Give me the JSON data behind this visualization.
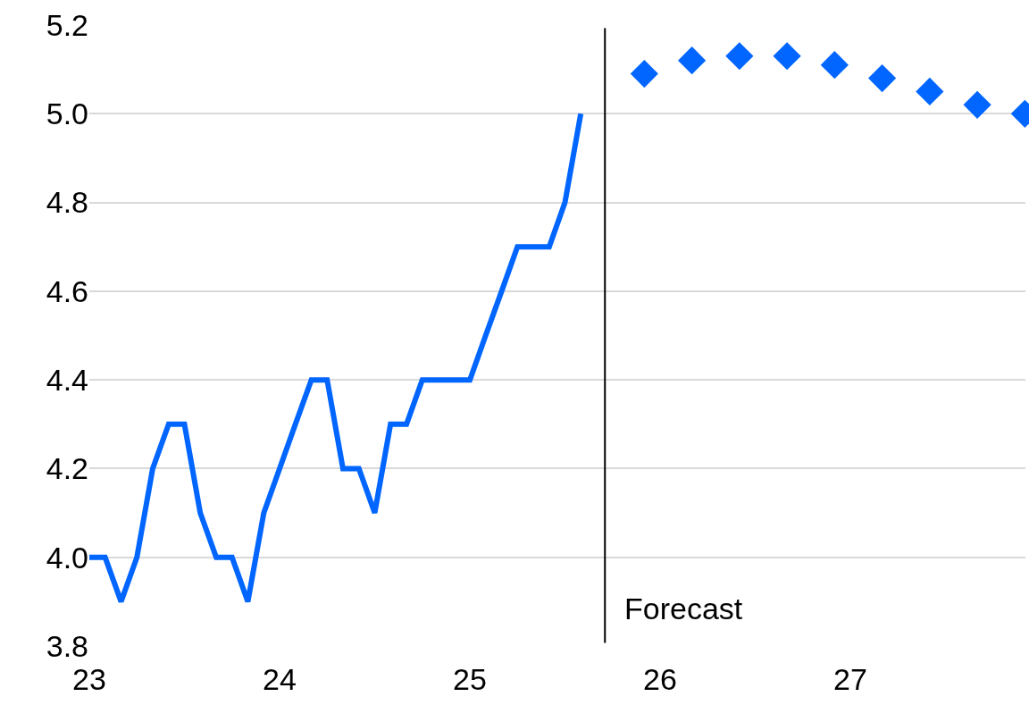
{
  "chart_data": {
    "type": "line",
    "series": [
      {
        "color": "#0066ff",
        "marker": "none",
        "x": [
          23,
          23.083,
          23.167,
          23.25,
          23.333,
          23.417,
          23.5,
          23.583,
          23.667,
          23.75,
          23.833,
          23.917,
          24,
          24.083,
          24.167,
          24.25,
          24.333,
          24.417,
          24.5,
          24.583,
          24.667,
          24.75,
          24.833,
          24.917,
          25,
          25.083,
          25.167,
          25.25,
          25.333,
          25.417,
          25.5,
          25.583
        ],
        "values": [
          4.0,
          4.0,
          3.9,
          4.0,
          4.2,
          4.3,
          4.3,
          4.1,
          4.0,
          4.0,
          3.9,
          4.1,
          4.2,
          4.3,
          4.4,
          4.4,
          4.2,
          4.2,
          4.1,
          4.3,
          4.3,
          4.4,
          4.4,
          4.4,
          4.4,
          4.5,
          4.6,
          4.7,
          4.7,
          4.7,
          4.8,
          5.0
        ]
      },
      {
        "color": "#0066ff",
        "type": "scatter",
        "marker": "diamond",
        "x": [
          25.917,
          26.167,
          26.417,
          26.667,
          26.917,
          27.167,
          27.417,
          27.667,
          27.917
        ],
        "values": [
          5.09,
          5.12,
          5.13,
          5.13,
          5.11,
          5.08,
          5.05,
          5.02,
          5.0
        ]
      }
    ],
    "xlim": [
      23,
      27.92
    ],
    "xticks": [
      23,
      24,
      25,
      26,
      27
    ],
    "ylim": [
      3.8,
      5.2
    ],
    "yticks": [
      3.8,
      {
        "value": 4,
        "label": "4.0"
      },
      4.2,
      4.4,
      4.6,
      4.8,
      {
        "value": 5,
        "label": "5.0"
      },
      5.2
    ],
    "grid": "y",
    "ref_lines": [
      {
        "axis": "x",
        "value": 25.71,
        "label": "Forecast",
        "color": "#000000"
      }
    ]
  }
}
